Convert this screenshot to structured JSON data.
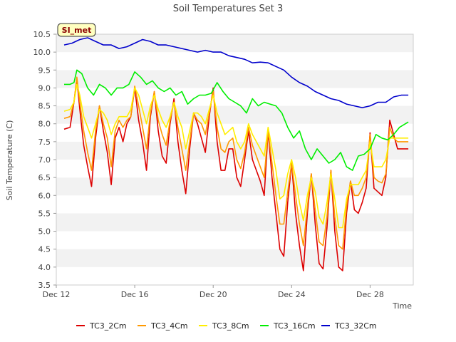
{
  "chart_data": {
    "type": "line",
    "title": "Soil Temperatures Set 3",
    "xlabel": "Time",
    "ylabel": "Soil Temperature (C)",
    "badge": "SI_met",
    "ylim": [
      3.5,
      10.5
    ],
    "yticks": [
      "3.5",
      "4.0",
      "4.5",
      "5.0",
      "5.5",
      "6.0",
      "6.5",
      "7.0",
      "7.5",
      "8.0",
      "8.5",
      "9.0",
      "9.5",
      "10.0",
      "10.5"
    ],
    "xlim": [
      12,
      30.2
    ],
    "xticks": [
      {
        "label": "Dec 12",
        "day": 12
      },
      {
        "label": "Dec 16",
        "day": 16
      },
      {
        "label": "Dec 20",
        "day": 20
      },
      {
        "label": "Dec 24",
        "day": 24
      },
      {
        "label": "Dec 28",
        "day": 28
      }
    ],
    "grid": "horizontal bands",
    "legend": "bottom",
    "colors": {
      "TC3_2Cm": "#dd0000",
      "TC3_4Cm": "#ff9900",
      "TC3_8Cm": "#ffee00",
      "TC3_16Cm": "#00ee00",
      "TC3_32Cm": "#0000cc"
    },
    "series": [
      {
        "name": "TC3_2Cm",
        "x": [
          12.4,
          12.7,
          12.9,
          13.05,
          13.2,
          13.4,
          13.6,
          13.8,
          14.0,
          14.2,
          14.4,
          14.6,
          14.8,
          15.0,
          15.2,
          15.4,
          15.6,
          15.8,
          16.0,
          16.2,
          16.4,
          16.6,
          16.8,
          17.0,
          17.2,
          17.4,
          17.6,
          17.8,
          18.0,
          18.2,
          18.4,
          18.6,
          18.8,
          19.0,
          19.2,
          19.4,
          19.6,
          19.8,
          20.0,
          20.2,
          20.4,
          20.6,
          20.8,
          21.0,
          21.2,
          21.4,
          21.6,
          21.8,
          22.0,
          22.2,
          22.4,
          22.6,
          22.8,
          23.0,
          23.2,
          23.4,
          23.6,
          23.8,
          24.0,
          24.2,
          24.4,
          24.6,
          24.8,
          25.0,
          25.2,
          25.4,
          25.6,
          25.8,
          26.0,
          26.2,
          26.4,
          26.6,
          26.8,
          27.0,
          27.2,
          27.4,
          27.6,
          27.8,
          28.0,
          28.2,
          28.4,
          28.6,
          28.8,
          29.0,
          29.2,
          29.4,
          29.6,
          29.8,
          29.95
        ],
        "y": [
          7.85,
          7.9,
          8.6,
          9.25,
          8.4,
          7.4,
          6.8,
          6.25,
          7.6,
          8.5,
          7.8,
          7.2,
          6.3,
          7.6,
          7.9,
          7.5,
          8.0,
          8.2,
          9.0,
          8.1,
          7.5,
          6.7,
          8.2,
          8.9,
          7.8,
          7.1,
          6.9,
          8.0,
          8.7,
          7.5,
          6.7,
          6.05,
          7.3,
          8.3,
          8.0,
          7.6,
          7.2,
          8.2,
          9.0,
          7.5,
          6.7,
          6.7,
          7.3,
          7.3,
          6.5,
          6.25,
          7.0,
          7.8,
          7.0,
          6.7,
          6.4,
          6.0,
          7.8,
          6.5,
          5.5,
          4.5,
          4.3,
          5.8,
          6.9,
          5.5,
          4.6,
          3.9,
          5.5,
          6.6,
          5.2,
          4.1,
          3.95,
          5.1,
          6.7,
          5.0,
          4.0,
          3.9,
          5.5,
          6.4,
          5.6,
          5.5,
          5.8,
          6.2,
          7.75,
          6.2,
          6.1,
          6.0,
          6.5,
          8.1,
          7.7,
          7.3,
          7.3,
          7.3,
          7.3
        ]
      },
      {
        "name": "TC3_4Cm",
        "x": [
          12.4,
          12.7,
          12.9,
          13.05,
          13.2,
          13.4,
          13.6,
          13.8,
          14.0,
          14.2,
          14.4,
          14.6,
          14.8,
          15.0,
          15.2,
          15.4,
          15.6,
          15.8,
          16.0,
          16.2,
          16.4,
          16.6,
          16.8,
          17.0,
          17.2,
          17.4,
          17.6,
          17.8,
          18.0,
          18.2,
          18.4,
          18.6,
          18.8,
          19.0,
          19.2,
          19.4,
          19.6,
          19.8,
          20.0,
          20.2,
          20.4,
          20.6,
          20.8,
          21.0,
          21.2,
          21.4,
          21.6,
          21.8,
          22.0,
          22.2,
          22.4,
          22.6,
          22.8,
          23.0,
          23.2,
          23.4,
          23.6,
          23.8,
          24.0,
          24.2,
          24.4,
          24.6,
          24.8,
          25.0,
          25.2,
          25.4,
          25.6,
          25.8,
          26.0,
          26.2,
          26.4,
          26.6,
          26.8,
          27.0,
          27.2,
          27.4,
          27.6,
          27.8,
          28.0,
          28.2,
          28.4,
          28.6,
          28.8,
          29.0,
          29.2,
          29.4,
          29.6,
          29.8,
          29.95
        ],
        "y": [
          8.15,
          8.2,
          8.6,
          9.3,
          8.6,
          7.8,
          7.2,
          6.7,
          7.8,
          8.5,
          8.0,
          7.6,
          6.8,
          7.8,
          8.1,
          7.9,
          8.1,
          8.2,
          9.05,
          8.5,
          7.9,
          7.3,
          8.3,
          8.9,
          8.1,
          7.7,
          7.4,
          8.1,
          8.6,
          7.9,
          7.3,
          6.7,
          7.5,
          8.3,
          8.1,
          8.0,
          7.7,
          8.3,
          8.9,
          7.9,
          7.3,
          7.2,
          7.5,
          7.6,
          7.0,
          6.75,
          7.2,
          7.9,
          7.4,
          7.1,
          6.8,
          6.5,
          7.8,
          6.9,
          6.0,
          5.2,
          5.2,
          6.1,
          6.9,
          6.0,
          5.2,
          4.6,
          5.7,
          6.6,
          5.6,
          4.7,
          4.6,
          5.4,
          6.7,
          5.4,
          4.6,
          4.5,
          5.7,
          6.4,
          6.0,
          6.0,
          6.2,
          6.5,
          7.7,
          6.5,
          6.4,
          6.35,
          6.6,
          7.9,
          7.6,
          7.5,
          7.5,
          7.5,
          7.5
        ]
      },
      {
        "name": "TC3_8Cm",
        "x": [
          12.4,
          12.7,
          12.9,
          13.05,
          13.2,
          13.4,
          13.6,
          13.8,
          14.0,
          14.2,
          14.4,
          14.6,
          14.8,
          15.0,
          15.2,
          15.4,
          15.6,
          15.8,
          16.0,
          16.2,
          16.4,
          16.6,
          16.8,
          17.0,
          17.2,
          17.4,
          17.6,
          17.8,
          18.0,
          18.2,
          18.4,
          18.6,
          18.8,
          19.0,
          19.2,
          19.4,
          19.6,
          19.8,
          20.0,
          20.2,
          20.4,
          20.6,
          20.8,
          21.0,
          21.2,
          21.4,
          21.6,
          21.8,
          22.0,
          22.2,
          22.4,
          22.6,
          22.8,
          23.0,
          23.2,
          23.4,
          23.6,
          23.8,
          24.0,
          24.2,
          24.4,
          24.6,
          24.8,
          25.0,
          25.2,
          25.4,
          25.6,
          25.8,
          26.0,
          26.2,
          26.4,
          26.6,
          26.8,
          27.0,
          27.2,
          27.4,
          27.6,
          27.8,
          28.0,
          28.2,
          28.4,
          28.6,
          28.8,
          29.0,
          29.2,
          29.4,
          29.6,
          29.8,
          29.95
        ],
        "y": [
          8.35,
          8.4,
          8.6,
          9.1,
          8.8,
          8.2,
          7.9,
          7.6,
          8.0,
          8.4,
          8.3,
          8.1,
          7.7,
          8.0,
          8.2,
          8.2,
          8.2,
          8.4,
          9.0,
          8.8,
          8.4,
          8.0,
          8.5,
          8.8,
          8.4,
          8.1,
          7.9,
          8.2,
          8.6,
          8.2,
          7.9,
          7.3,
          7.8,
          8.3,
          8.3,
          8.2,
          8.0,
          8.4,
          8.8,
          8.3,
          8.0,
          7.7,
          7.8,
          7.9,
          7.5,
          7.3,
          7.5,
          8.0,
          7.7,
          7.5,
          7.3,
          7.1,
          7.9,
          7.3,
          6.7,
          5.9,
          6.0,
          6.6,
          7.0,
          6.5,
          5.8,
          5.3,
          6.0,
          6.5,
          6.1,
          5.4,
          5.2,
          5.8,
          6.6,
          5.9,
          5.1,
          5.1,
          5.9,
          6.3,
          6.3,
          6.3,
          6.5,
          6.7,
          7.5,
          6.8,
          6.8,
          6.8,
          7.0,
          7.6,
          7.6,
          7.6,
          7.6,
          7.6,
          7.6
        ]
      },
      {
        "name": "TC3_16Cm",
        "x": [
          12.4,
          12.7,
          12.9,
          13.05,
          13.3,
          13.6,
          13.9,
          14.2,
          14.5,
          14.8,
          15.1,
          15.4,
          15.7,
          16.0,
          16.3,
          16.6,
          16.9,
          17.2,
          17.5,
          17.8,
          18.1,
          18.4,
          18.7,
          19.0,
          19.3,
          19.6,
          19.9,
          20.2,
          20.5,
          20.8,
          21.1,
          21.4,
          21.7,
          22.0,
          22.3,
          22.6,
          22.9,
          23.2,
          23.5,
          23.8,
          24.1,
          24.4,
          24.7,
          25.0,
          25.3,
          25.6,
          25.9,
          26.2,
          26.5,
          26.8,
          27.1,
          27.4,
          27.7,
          28.0,
          28.3,
          28.6,
          28.9,
          29.2,
          29.5,
          29.8,
          29.95
        ],
        "y": [
          9.1,
          9.1,
          9.15,
          9.5,
          9.4,
          9.0,
          8.8,
          9.1,
          9.0,
          8.8,
          9.0,
          9.0,
          9.1,
          9.45,
          9.3,
          9.1,
          9.2,
          9.0,
          8.9,
          9.0,
          8.8,
          8.9,
          8.55,
          8.7,
          8.8,
          8.8,
          8.85,
          9.15,
          8.9,
          8.7,
          8.6,
          8.5,
          8.3,
          8.7,
          8.5,
          8.6,
          8.55,
          8.5,
          8.3,
          7.9,
          7.6,
          7.8,
          7.3,
          7.0,
          7.3,
          7.1,
          6.9,
          7.0,
          7.2,
          6.8,
          6.7,
          7.1,
          7.15,
          7.3,
          7.7,
          7.6,
          7.55,
          7.7,
          7.9,
          8.0,
          8.05
        ]
      },
      {
        "name": "TC3_32Cm",
        "x": [
          12.4,
          12.8,
          13.2,
          13.6,
          14.0,
          14.4,
          14.8,
          15.2,
          15.6,
          16.0,
          16.4,
          16.8,
          17.2,
          17.6,
          18.0,
          18.4,
          18.8,
          19.2,
          19.6,
          20.0,
          20.4,
          20.8,
          21.2,
          21.6,
          22.0,
          22.4,
          22.8,
          23.2,
          23.6,
          24.0,
          24.4,
          24.8,
          25.2,
          25.6,
          26.0,
          26.4,
          26.8,
          27.2,
          27.6,
          28.0,
          28.4,
          28.8,
          29.2,
          29.6,
          29.95
        ],
        "y": [
          10.2,
          10.25,
          10.35,
          10.4,
          10.3,
          10.2,
          10.2,
          10.1,
          10.15,
          10.25,
          10.35,
          10.3,
          10.2,
          10.2,
          10.15,
          10.1,
          10.05,
          10.0,
          10.05,
          10.0,
          10.0,
          9.9,
          9.85,
          9.8,
          9.7,
          9.72,
          9.7,
          9.6,
          9.5,
          9.3,
          9.15,
          9.05,
          8.9,
          8.8,
          8.7,
          8.65,
          8.55,
          8.5,
          8.45,
          8.5,
          8.6,
          8.6,
          8.75,
          8.8,
          8.8
        ]
      }
    ]
  }
}
